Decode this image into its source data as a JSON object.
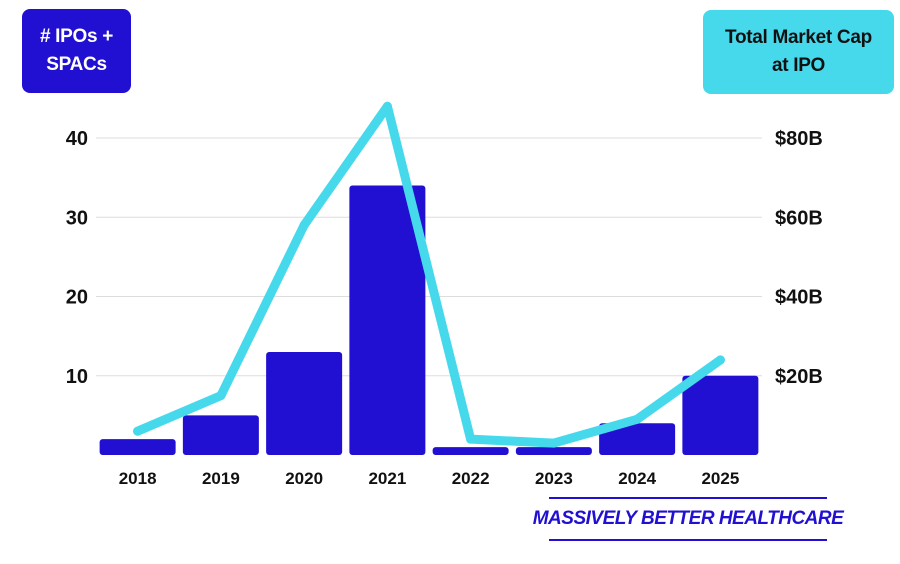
{
  "badges": {
    "left": "# IPOs +\nSPACs",
    "right": "Total Market Cap\nat IPO"
  },
  "logo": "MASSIVELY BETTER HEALTHCARE",
  "colors": {
    "bar": "#2110d1",
    "line": "#46d9ec",
    "grid": "#dddddd"
  },
  "chart_data": {
    "type": "bar",
    "categories": [
      "2018",
      "2019",
      "2020",
      "2021",
      "2022",
      "2023",
      "2024",
      "2025"
    ],
    "series": [
      {
        "axis": "left",
        "kind": "bar",
        "values": [
          2,
          5,
          13,
          34,
          1,
          1,
          4,
          10
        ]
      },
      {
        "axis": "right",
        "kind": "line",
        "values": [
          6,
          15,
          58,
          88,
          4,
          3,
          9,
          24
        ]
      }
    ],
    "y_left": {
      "ticks": [
        10,
        20,
        30,
        40
      ],
      "ylim": [
        0,
        40
      ]
    },
    "y_right": {
      "ticks": [
        "$20B",
        "$40B",
        "$60B",
        "$80B"
      ],
      "tick_values": [
        20,
        40,
        60,
        80
      ],
      "ylim": [
        0,
        80
      ]
    },
    "grid": true
  }
}
